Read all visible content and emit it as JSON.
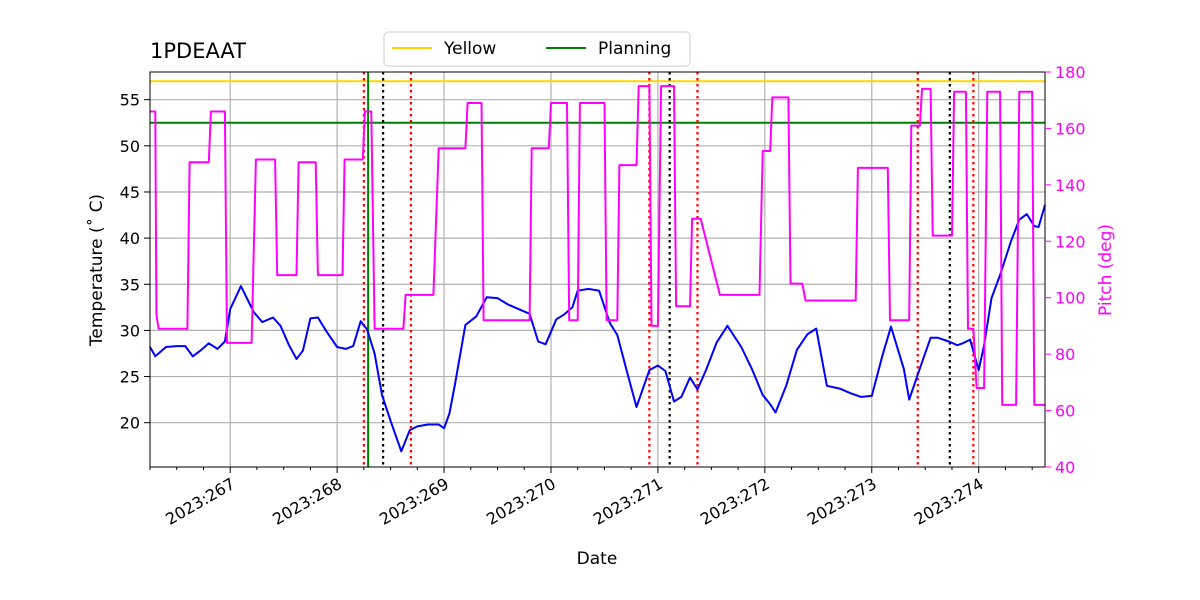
{
  "chart_data": {
    "type": "line",
    "title": "1PDEAAT",
    "xlabel": "Date",
    "ylabel": "Temperature ($^\\circ$C)",
    "ylabel_display": "Temperature (˚ C)",
    "y2label": "Pitch (deg)",
    "xlim": [
      266.25,
      274.62
    ],
    "ylim": [
      15.2,
      58.0
    ],
    "y2lim": [
      40,
      180
    ],
    "x_ticks": [
      {
        "value": 267,
        "label": "2023:267"
      },
      {
        "value": 268,
        "label": "2023:268"
      },
      {
        "value": 269,
        "label": "2023:269"
      },
      {
        "value": 270,
        "label": "2023:270"
      },
      {
        "value": 271,
        "label": "2023:271"
      },
      {
        "value": 272,
        "label": "2023:272"
      },
      {
        "value": 273,
        "label": "2023:273"
      },
      {
        "value": 274,
        "label": "2023:274"
      }
    ],
    "y_ticks": [
      {
        "value": 20,
        "label": "20"
      },
      {
        "value": 25,
        "label": "25"
      },
      {
        "value": 30,
        "label": "30"
      },
      {
        "value": 35,
        "label": "35"
      },
      {
        "value": 40,
        "label": "40"
      },
      {
        "value": 45,
        "label": "45"
      },
      {
        "value": 50,
        "label": "50"
      },
      {
        "value": 55,
        "label": "55"
      }
    ],
    "y2_ticks": [
      {
        "value": 40,
        "label": "40"
      },
      {
        "value": 60,
        "label": "60"
      },
      {
        "value": 80,
        "label": "80"
      },
      {
        "value": 100,
        "label": "100"
      },
      {
        "value": 120,
        "label": "120"
      },
      {
        "value": 140,
        "label": "140"
      },
      {
        "value": 160,
        "label": "160"
      },
      {
        "value": 180,
        "label": "180"
      }
    ],
    "grid": true,
    "legend_position": "top-center",
    "reference_lines": [
      {
        "name": "Yellow",
        "value": 57.0,
        "color": "#ffd700"
      },
      {
        "name": "Planning",
        "value": 52.5,
        "color": "#008000"
      }
    ],
    "planning_vline": {
      "x": 268.29,
      "color": "#008000"
    },
    "red_dotted_vlines": [
      268.25,
      268.69,
      270.92,
      271.37,
      273.43,
      273.95
    ],
    "black_dotted_vlines": [
      268.43,
      271.11,
      273.73
    ],
    "series": [
      {
        "name": "Temperature",
        "axis": "left",
        "color": "#0000ff",
        "x": [
          266.25,
          266.3,
          266.4,
          266.5,
          266.58,
          266.65,
          266.72,
          266.8,
          266.88,
          266.95,
          267.0,
          267.1,
          267.22,
          267.3,
          267.4,
          267.47,
          267.55,
          267.62,
          267.68,
          267.75,
          267.82,
          267.9,
          268.0,
          268.08,
          268.15,
          268.22,
          268.28,
          268.35,
          268.42,
          268.5,
          268.6,
          268.68,
          268.75,
          268.85,
          268.95,
          269.0,
          269.05,
          269.1,
          269.2,
          269.3,
          269.4,
          269.5,
          269.6,
          269.7,
          269.8,
          269.88,
          269.95,
          270.05,
          270.12,
          270.2,
          270.25,
          270.35,
          270.45,
          270.55,
          270.62,
          270.7,
          270.8,
          270.92,
          271.0,
          271.07,
          271.15,
          271.22,
          271.3,
          271.37,
          271.45,
          271.55,
          271.65,
          271.78,
          271.88,
          271.98,
          272.05,
          272.1,
          272.2,
          272.3,
          272.4,
          272.48,
          272.58,
          272.7,
          272.8,
          272.9,
          273.0,
          273.1,
          273.18,
          273.3,
          273.35,
          273.45,
          273.55,
          273.62,
          273.72,
          273.8,
          273.85,
          273.92,
          274.0,
          274.05,
          274.12,
          274.2,
          274.3,
          274.38,
          274.45,
          274.52,
          274.56,
          274.62
        ],
        "values": [
          28.2,
          27.2,
          28.2,
          28.3,
          28.3,
          27.2,
          27.8,
          28.6,
          28.0,
          28.8,
          32.3,
          34.8,
          32.0,
          30.9,
          31.4,
          30.5,
          28.4,
          26.9,
          27.8,
          31.3,
          31.4,
          29.9,
          28.2,
          28.0,
          28.3,
          31.0,
          30.1,
          27.5,
          23.0,
          20.2,
          16.9,
          19.2,
          19.6,
          19.8,
          19.8,
          19.4,
          21.0,
          24.0,
          30.6,
          31.5,
          33.6,
          33.5,
          32.8,
          32.3,
          31.8,
          28.8,
          28.5,
          31.2,
          31.7,
          32.5,
          34.3,
          34.5,
          34.3,
          30.8,
          29.5,
          26.0,
          21.7,
          25.7,
          26.2,
          25.6,
          22.3,
          22.8,
          24.9,
          23.6,
          25.7,
          28.7,
          30.5,
          28.2,
          25.8,
          23.0,
          22.0,
          21.1,
          24.0,
          27.9,
          29.6,
          30.2,
          24.0,
          23.7,
          23.2,
          22.8,
          22.9,
          27.3,
          30.4,
          25.8,
          22.5,
          25.9,
          29.2,
          29.2,
          28.8,
          28.4,
          28.6,
          29.0,
          25.7,
          28.4,
          33.5,
          36.0,
          39.6,
          42.0,
          42.6,
          41.3,
          41.2,
          43.6
        ]
      },
      {
        "name": "Pitch",
        "axis": "right",
        "color": "#ff00ff",
        "x": [
          266.25,
          266.3,
          266.31,
          266.33,
          266.6,
          266.62,
          266.8,
          266.82,
          266.95,
          266.97,
          267.2,
          267.24,
          267.42,
          267.44,
          267.62,
          267.64,
          267.8,
          267.82,
          268.05,
          268.07,
          268.24,
          268.26,
          268.32,
          268.35,
          268.62,
          268.64,
          268.9,
          268.95,
          269.2,
          269.22,
          269.35,
          269.37,
          269.55,
          269.57,
          269.8,
          269.82,
          269.98,
          270.0,
          270.15,
          270.17,
          270.25,
          270.27,
          270.5,
          270.52,
          270.62,
          270.64,
          270.8,
          270.82,
          270.92,
          270.94,
          271.0,
          271.03,
          271.15,
          271.17,
          271.3,
          271.32,
          271.37,
          271.4,
          271.58,
          271.62,
          271.95,
          271.98,
          272.05,
          272.07,
          272.22,
          272.24,
          272.35,
          272.38,
          272.5,
          272.52,
          272.85,
          272.87,
          273.15,
          273.17,
          273.35,
          273.37,
          273.45,
          273.47,
          273.55,
          273.57,
          273.75,
          273.77,
          273.88,
          273.9,
          273.95,
          273.98,
          274.05,
          274.08,
          274.2,
          274.22,
          274.35,
          274.38,
          274.5,
          274.52,
          274.62
        ],
        "values": [
          166,
          166,
          94,
          89,
          89,
          148,
          148,
          166,
          166,
          84,
          84,
          149,
          149,
          108,
          108,
          148,
          148,
          108,
          108,
          149,
          149,
          166,
          166,
          89,
          89,
          101,
          101,
          153,
          153,
          169,
          169,
          92,
          92,
          92,
          92,
          153,
          153,
          169,
          169,
          92,
          92,
          169,
          169,
          92,
          92,
          147,
          147,
          175,
          175,
          90,
          90,
          175,
          175,
          97,
          97,
          128,
          128,
          128,
          101,
          101,
          101,
          152,
          152,
          171,
          171,
          105,
          105,
          99,
          99,
          99,
          99,
          146,
          146,
          92,
          92,
          161,
          161,
          174,
          174,
          122,
          122,
          173,
          173,
          89,
          89,
          68,
          68,
          173,
          173,
          62,
          62,
          173,
          173,
          62,
          62
        ]
      }
    ]
  }
}
